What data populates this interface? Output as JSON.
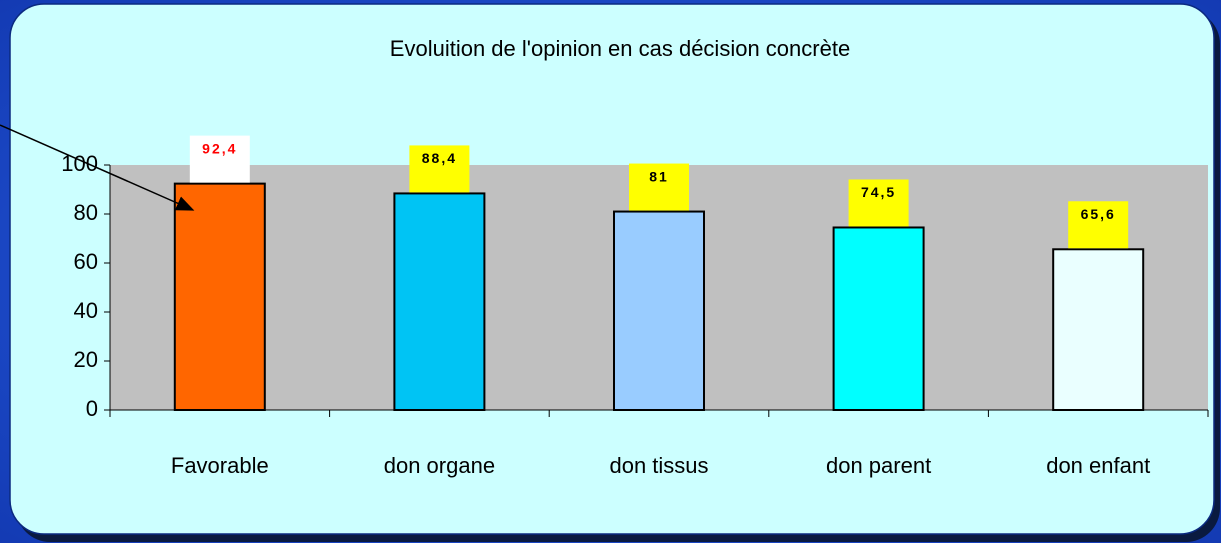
{
  "chart_data": {
    "type": "bar",
    "title": "Evoluition de l'opinion en cas décision concrète",
    "categories": [
      "Favorable",
      "don organe",
      "don tissus",
      "don parent",
      "don enfant"
    ],
    "values": [
      92.4,
      88.4,
      81,
      74.5,
      65.6
    ],
    "value_labels": [
      "92,4",
      "88,4",
      "81",
      "74,5",
      "65,6"
    ],
    "colors": [
      "#ff6600",
      "#00c4f4",
      "#99ccff",
      "#00ffff",
      "#eaffff"
    ],
    "ylim": [
      0,
      100
    ],
    "yticks": [
      0,
      20,
      40,
      60,
      80,
      100
    ]
  }
}
